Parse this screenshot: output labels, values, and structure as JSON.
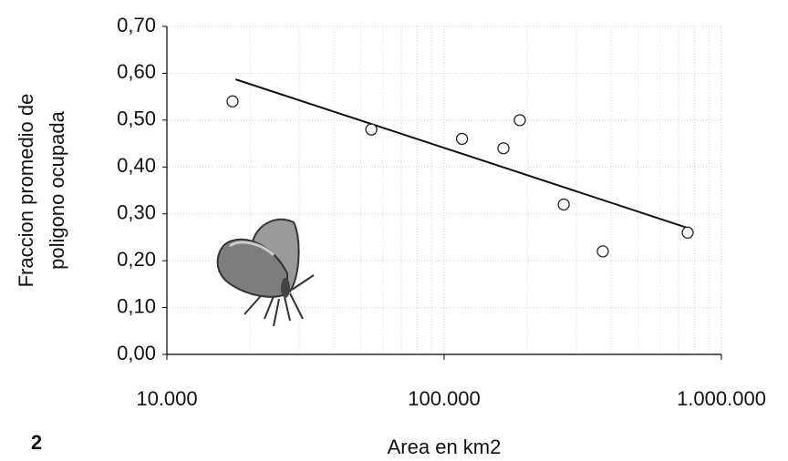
{
  "chart_data": {
    "type": "scatter",
    "panel_label": "2",
    "xlabel": "Area en km2",
    "ylabel": [
      "Fraccion promedio de",
      "poligono ocupada"
    ],
    "xlog": true,
    "grid": true,
    "xlim": [
      10000,
      1000000
    ],
    "xticks": [
      {
        "value": 10000,
        "label": "10.000"
      },
      {
        "value": 100000,
        "label": "100.000"
      },
      {
        "value": 1000000,
        "label": "1.000.000"
      }
    ],
    "ylim": [
      0,
      0.7
    ],
    "yticks": [
      {
        "value": 0,
        "label": "0,00"
      },
      {
        "value": 0.1,
        "label": "0,10"
      },
      {
        "value": 0.2,
        "label": "0,20"
      },
      {
        "value": 0.3,
        "label": "0,30"
      },
      {
        "value": 0.4,
        "label": "0,40"
      },
      {
        "value": 0.5,
        "label": "0,50"
      },
      {
        "value": 0.6,
        "label": "0,60"
      },
      {
        "value": 0.7,
        "label": "0,70"
      }
    ],
    "series": [
      {
        "color": "#222222",
        "x": [
          17250,
          54600,
          116000,
          163600,
          187500,
          270000,
          373500,
          755500
        ],
        "y": [
          0.54,
          0.48,
          0.46,
          0.44,
          0.5,
          0.32,
          0.22,
          0.26
        ]
      }
    ],
    "trendline": {
      "color": "#111111",
      "x": [
        17700,
        755500
      ],
      "y": [
        0.587,
        0.27
      ]
    }
  }
}
